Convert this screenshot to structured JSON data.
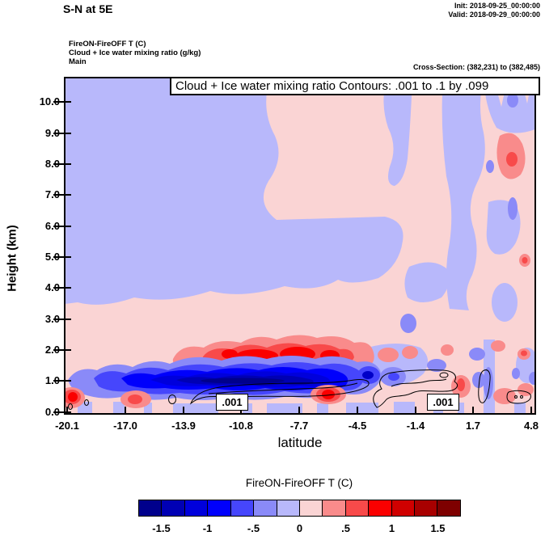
{
  "header": {
    "title": "S-N at 5E",
    "init": "Init: 2018-09-25_00:00:00",
    "valid": "Valid: 2018-09-29_00:00:00",
    "legend_lines": [
      "FireON-FireOFF T   (C)",
      "Cloud + Ice water mixing ratio   (g/kg)",
      "Main"
    ],
    "cross_section": "Cross-Section: (382,231) to (382,485)"
  },
  "plot": {
    "title": "Cloud + Ice water mixing ratio Contours: .001 to .1 by .099",
    "xlabel": "latitude",
    "ylabel": "Height (km)",
    "x_tick_labels": [
      "-20.1",
      "-17.0",
      "-13.9",
      "-10.8",
      "-7.7",
      "-4.5",
      "-1.4",
      "1.7",
      "4.8"
    ],
    "y_tick_labels": [
      "0.0",
      "1.0",
      "2.0",
      "3.0",
      "4.0",
      "5.0",
      "6.0",
      "7.0",
      "8.0",
      "9.0",
      "10.0"
    ],
    "contour_labels": [
      ".001",
      ".001"
    ]
  },
  "colorbar": {
    "title": "FireON-FireOFF T  (C)",
    "tick_labels": [
      "-1.5",
      "-1",
      "-.5",
      "0",
      ".5",
      "1",
      "1.5"
    ]
  },
  "chart_data": {
    "type": "heatmap",
    "subtype": "vertical-cross-section-filled-contour",
    "title": "Cloud + Ice water mixing ratio Contours: .001 to .1 by .099",
    "xlabel": "latitude",
    "ylabel": "Height (km)",
    "xlim": [
      -20.1,
      4.8
    ],
    "ylim": [
      0,
      10.9
    ],
    "x_ticks": [
      -20.1,
      -17.0,
      -13.9,
      -10.8,
      -7.7,
      -4.5,
      -1.4,
      1.7,
      4.8
    ],
    "y_ticks": [
      0,
      1,
      2,
      3,
      4,
      5,
      6,
      7,
      8,
      9,
      10
    ],
    "grid": false,
    "fill_variable": "FireON-FireOFF T (C)",
    "fill_levels": [
      -1.75,
      -1.5,
      -1.25,
      -1.0,
      -0.75,
      -0.5,
      -0.25,
      0,
      0.25,
      0.5,
      0.75,
      1.0,
      1.25,
      1.5,
      1.75
    ],
    "fill_colors": [
      "#00008C",
      "#0000B4",
      "#0000DC",
      "#0000FC",
      "#4646FC",
      "#8A8AF8",
      "#B8B8FB",
      "#FAD4D4",
      "#F98B8B",
      "#F84A4A",
      "#FA0000",
      "#D00000",
      "#A80000",
      "#7E0000"
    ],
    "contour_variable": "Cloud + Ice water mixing ratio (g/kg)",
    "contour_levels": [
      0.001,
      0.1
    ],
    "contour_interval": 0.099,
    "legend_position": "bottom-colorbar",
    "notable_features": [
      {
        "description": "Strong near-surface cooling band, dT <= -1.5 C",
        "lat_range": [
          -17.5,
          -5.0
        ],
        "height_km": [
          0.4,
          1.1
        ]
      },
      {
        "description": "Warming band above the cooling layer, dT up to +1.5 C",
        "lat_range": [
          -14.5,
          -6.5
        ],
        "height_km": [
          1.3,
          2.1
        ]
      },
      {
        "description": "Weak cooling (-0.25 to 0 C) dominates 3-10 km south of -5 latitude",
        "lat_range": [
          -20.1,
          -5.0
        ],
        "height_km": [
          3,
          10
        ]
      },
      {
        "description": "Alternating weak warm/cool streaks north of -4.5 latitude through full depth",
        "lat_range": [
          -4.5,
          4.8
        ],
        "height_km": [
          0,
          10.9
        ]
      },
      {
        "description": "Isolated warm spot dT ~ +0.75 C near 8 km",
        "lat_range": [
          -1.0,
          0.2
        ],
        "height_km": [
          7.5,
          8.5
        ]
      },
      {
        "description": "Cloud + ice mixing ratio 0.001 g/kg contours confined below ~1.5 km, labeled near lat -11.5 and -1.9",
        "lat_range": [
          -15.5,
          4.5
        ],
        "height_km": [
          0,
          1.5
        ]
      }
    ]
  }
}
